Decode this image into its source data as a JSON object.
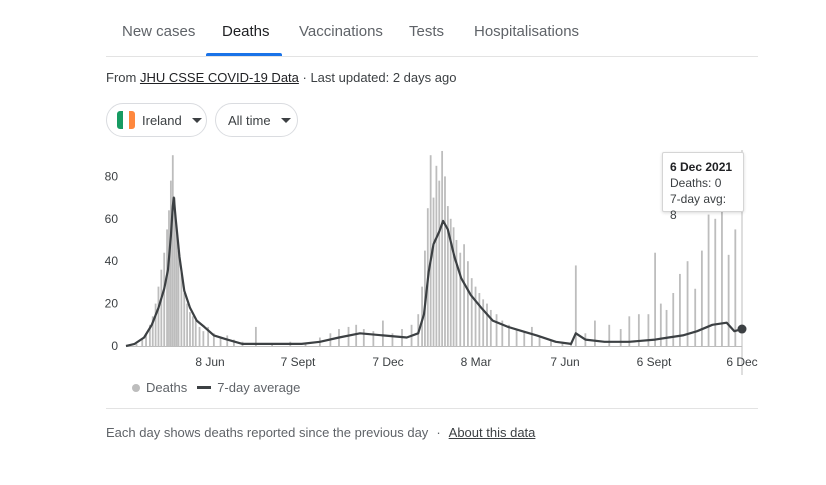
{
  "tabs": [
    {
      "label": "New cases"
    },
    {
      "label": "Deaths"
    },
    {
      "label": "Vaccinations"
    },
    {
      "label": "Tests"
    },
    {
      "label": "Hospitalisations"
    }
  ],
  "active_tab": "Deaths",
  "source": {
    "prefix": "From ",
    "link": "JHU CSSE COVID-19 Data",
    "suffix": " · Last updated: 2 days ago"
  },
  "filters": {
    "region": "Ireland",
    "range": "All time",
    "flag_colors": [
      "#169b62",
      "#ffffff",
      "#ff883e"
    ]
  },
  "tooltip": {
    "date": "6 Dec 2021",
    "deaths": "Deaths: 0",
    "avg": "7-day avg: 8"
  },
  "legend": {
    "bars": "Deaths",
    "line": "7-day average"
  },
  "footer": {
    "note": "Each day shows deaths reported since the previous day",
    "link": "About this data"
  },
  "colors": {
    "bars": "#bdbdbd",
    "line": "#3c4043",
    "accent": "#1a73e8",
    "grid": "#e0e0e0"
  },
  "chart_data": {
    "type": "bar",
    "title": "",
    "xlabel": "",
    "ylabel": "",
    "ylim": [
      0,
      90
    ],
    "yticks": [
      0,
      20,
      40,
      60,
      80
    ],
    "xticks": [
      "8 Jun",
      "7 Sept",
      "7 Dec",
      "8 Mar",
      "7 Jun",
      "6 Sept",
      "6 Dec"
    ],
    "x_range": [
      "2020-03-01",
      "2021-12-06"
    ],
    "series": [
      {
        "name": "Deaths",
        "type": "bar",
        "points": [
          [
            "2020-03-12",
            1
          ],
          [
            "2020-03-18",
            3
          ],
          [
            "2020-03-22",
            6
          ],
          [
            "2020-03-26",
            10
          ],
          [
            "2020-03-29",
            14
          ],
          [
            "2020-04-01",
            20
          ],
          [
            "2020-04-04",
            28
          ],
          [
            "2020-04-07",
            36
          ],
          [
            "2020-04-10",
            44
          ],
          [
            "2020-04-13",
            55
          ],
          [
            "2020-04-15",
            64
          ],
          [
            "2020-04-17",
            78
          ],
          [
            "2020-04-19",
            90
          ],
          [
            "2020-04-21",
            70
          ],
          [
            "2020-04-23",
            55
          ],
          [
            "2020-04-25",
            45
          ],
          [
            "2020-04-28",
            35
          ],
          [
            "2020-05-01",
            25
          ],
          [
            "2020-05-04",
            20
          ],
          [
            "2020-05-07",
            16
          ],
          [
            "2020-05-10",
            14
          ],
          [
            "2020-05-13",
            12
          ],
          [
            "2020-05-17",
            9
          ],
          [
            "2020-05-21",
            7
          ],
          [
            "2020-05-26",
            9
          ],
          [
            "2020-06-01",
            6
          ],
          [
            "2020-06-08",
            4
          ],
          [
            "2020-06-15",
            5
          ],
          [
            "2020-06-22",
            3
          ],
          [
            "2020-07-01",
            2
          ],
          [
            "2020-07-15",
            9
          ],
          [
            "2020-08-01",
            1
          ],
          [
            "2020-08-20",
            2
          ],
          [
            "2020-09-05",
            1
          ],
          [
            "2020-09-20",
            4
          ],
          [
            "2020-10-01",
            6
          ],
          [
            "2020-10-10",
            8
          ],
          [
            "2020-10-20",
            9
          ],
          [
            "2020-10-28",
            10
          ],
          [
            "2020-11-05",
            8
          ],
          [
            "2020-11-15",
            7
          ],
          [
            "2020-11-25",
            12
          ],
          [
            "2020-12-05",
            6
          ],
          [
            "2020-12-15",
            8
          ],
          [
            "2020-12-25",
            10
          ],
          [
            "2021-01-01",
            15
          ],
          [
            "2021-01-05",
            28
          ],
          [
            "2021-01-08",
            45
          ],
          [
            "2021-01-11",
            65
          ],
          [
            "2021-01-14",
            90
          ],
          [
            "2021-01-17",
            70
          ],
          [
            "2021-01-20",
            85
          ],
          [
            "2021-01-23",
            78
          ],
          [
            "2021-01-26",
            92
          ],
          [
            "2021-01-29",
            80
          ],
          [
            "2021-02-01",
            66
          ],
          [
            "2021-02-04",
            60
          ],
          [
            "2021-02-07",
            56
          ],
          [
            "2021-02-10",
            50
          ],
          [
            "2021-02-14",
            44
          ],
          [
            "2021-02-18",
            48
          ],
          [
            "2021-02-22",
            40
          ],
          [
            "2021-02-26",
            32
          ],
          [
            "2021-03-02",
            28
          ],
          [
            "2021-03-06",
            25
          ],
          [
            "2021-03-10",
            22
          ],
          [
            "2021-03-14",
            20
          ],
          [
            "2021-03-18",
            17
          ],
          [
            "2021-03-24",
            15
          ],
          [
            "2021-03-30",
            12
          ],
          [
            "2021-04-06",
            10
          ],
          [
            "2021-04-14",
            8
          ],
          [
            "2021-04-22",
            7
          ],
          [
            "2021-04-30",
            9
          ],
          [
            "2021-05-08",
            4
          ],
          [
            "2021-05-20",
            3
          ],
          [
            "2021-06-01",
            2
          ],
          [
            "2021-06-10",
            1
          ],
          [
            "2021-06-15",
            38
          ],
          [
            "2021-06-25",
            6
          ],
          [
            "2021-07-05",
            12
          ],
          [
            "2021-07-20",
            10
          ],
          [
            "2021-08-01",
            8
          ],
          [
            "2021-08-10",
            14
          ],
          [
            "2021-08-20",
            15
          ],
          [
            "2021-08-30",
            15
          ],
          [
            "2021-09-06",
            44
          ],
          [
            "2021-09-12",
            20
          ],
          [
            "2021-09-18",
            17
          ],
          [
            "2021-09-25",
            25
          ],
          [
            "2021-10-02",
            34
          ],
          [
            "2021-10-10",
            40
          ],
          [
            "2021-10-18",
            27
          ],
          [
            "2021-10-25",
            45
          ],
          [
            "2021-11-01",
            62
          ],
          [
            "2021-11-08",
            60
          ],
          [
            "2021-11-15",
            69
          ],
          [
            "2021-11-22",
            43
          ],
          [
            "2021-11-29",
            55
          ],
          [
            "2021-12-06",
            0
          ]
        ]
      },
      {
        "name": "7-day average",
        "type": "line",
        "points": [
          [
            "2020-03-01",
            0
          ],
          [
            "2020-03-10",
            1
          ],
          [
            "2020-03-20",
            4
          ],
          [
            "2020-03-28",
            10
          ],
          [
            "2020-04-04",
            18
          ],
          [
            "2020-04-10",
            27
          ],
          [
            "2020-04-14",
            36
          ],
          [
            "2020-04-17",
            52
          ],
          [
            "2020-04-19",
            66
          ],
          [
            "2020-04-20",
            70
          ],
          [
            "2020-04-22",
            60
          ],
          [
            "2020-04-26",
            42
          ],
          [
            "2020-05-01",
            26
          ],
          [
            "2020-05-07",
            18
          ],
          [
            "2020-05-14",
            12
          ],
          [
            "2020-05-22",
            9
          ],
          [
            "2020-06-01",
            5
          ],
          [
            "2020-06-15",
            3
          ],
          [
            "2020-07-01",
            1
          ],
          [
            "2020-08-01",
            1
          ],
          [
            "2020-09-01",
            1
          ],
          [
            "2020-09-20",
            2
          ],
          [
            "2020-10-10",
            4
          ],
          [
            "2020-11-01",
            6
          ],
          [
            "2020-11-25",
            5
          ],
          [
            "2020-12-20",
            4
          ],
          [
            "2021-01-01",
            6
          ],
          [
            "2021-01-07",
            15
          ],
          [
            "2021-01-12",
            35
          ],
          [
            "2021-01-17",
            48
          ],
          [
            "2021-01-23",
            54
          ],
          [
            "2021-01-27",
            59
          ],
          [
            "2021-02-01",
            55
          ],
          [
            "2021-02-08",
            42
          ],
          [
            "2021-02-15",
            32
          ],
          [
            "2021-02-25",
            24
          ],
          [
            "2021-03-08",
            18
          ],
          [
            "2021-03-20",
            12
          ],
          [
            "2021-04-05",
            9
          ],
          [
            "2021-04-20",
            7
          ],
          [
            "2021-05-05",
            5
          ],
          [
            "2021-05-25",
            2
          ],
          [
            "2021-06-10",
            1
          ],
          [
            "2021-06-15",
            6
          ],
          [
            "2021-06-25",
            3
          ],
          [
            "2021-07-15",
            2
          ],
          [
            "2021-08-10",
            2
          ],
          [
            "2021-09-06",
            3
          ],
          [
            "2021-09-20",
            4
          ],
          [
            "2021-10-05",
            5
          ],
          [
            "2021-10-20",
            7
          ],
          [
            "2021-11-05",
            10
          ],
          [
            "2021-11-20",
            11
          ],
          [
            "2021-11-28",
            7
          ],
          [
            "2021-12-06",
            8
          ]
        ]
      }
    ],
    "grid": false,
    "legend_position": "bottom-left"
  }
}
